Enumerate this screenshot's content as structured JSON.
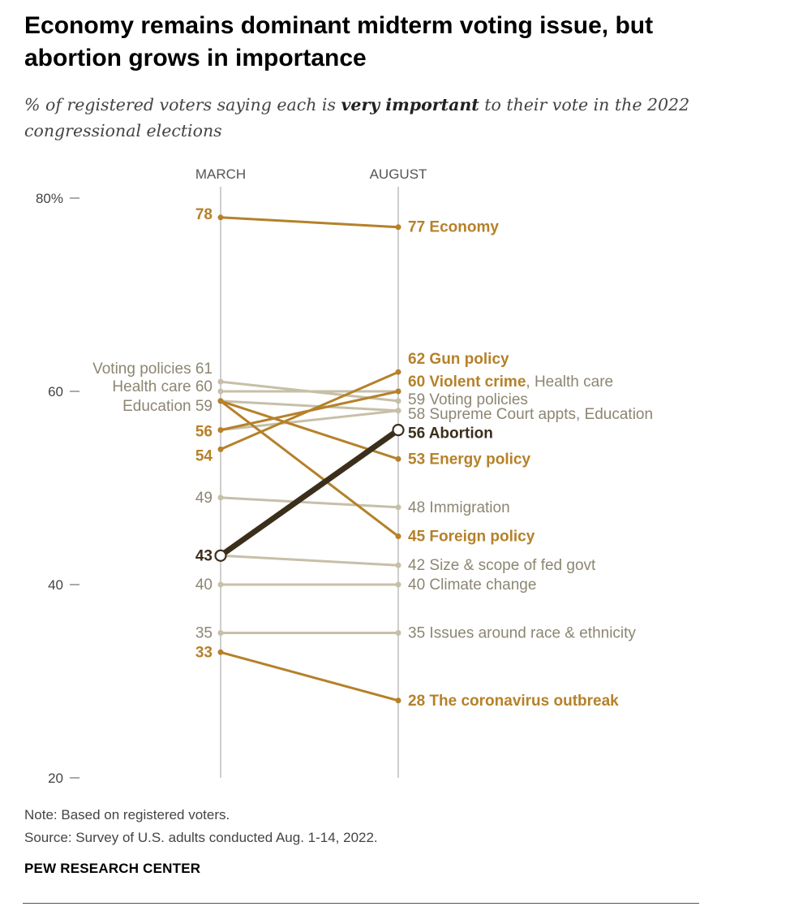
{
  "title": "Economy remains dominant midterm voting issue, but abortion grows in importance",
  "subtitle": {
    "pre": "% of registered voters saying each is ",
    "emphasis": "very important",
    "post": " to their vote in the 2022 congressional elections"
  },
  "note": "Note: Based on registered voters.",
  "source": "Source: Survey of U.S. adults conducted Aug. 1-14, 2022.",
  "brand": "PEW RESEARCH CENTER",
  "colors": {
    "gold": "#b5812a",
    "gray": "#c7bfa8",
    "gray_text": "#8c8672",
    "abortion": "#3b2f1c",
    "axis": "#bdbdbd"
  },
  "chart_data": {
    "type": "line",
    "x": [
      "MARCH",
      "AUGUST"
    ],
    "ylim": [
      20,
      80
    ],
    "yticks": [
      20,
      40,
      60,
      80
    ],
    "ytick_labels": [
      "20",
      "40",
      "60",
      "80%"
    ],
    "series": [
      {
        "name": "Economy",
        "values": [
          78,
          77
        ],
        "style": "gold",
        "bold_label": true
      },
      {
        "name": "Gun policy",
        "values": [
          54,
          62
        ],
        "style": "gold",
        "bold_label": true
      },
      {
        "name": "Violent crime",
        "values": [
          56,
          60
        ],
        "style": "gold",
        "bold_label": true
      },
      {
        "name": "Health care",
        "values": [
          60,
          60
        ],
        "style": "gray"
      },
      {
        "name": "Voting policies",
        "values": [
          61,
          59
        ],
        "style": "gray"
      },
      {
        "name": "Supreme Court appts",
        "values": [
          56,
          58
        ],
        "style": "gray"
      },
      {
        "name": "Education",
        "values": [
          59,
          58
        ],
        "style": "gray"
      },
      {
        "name": "Abortion",
        "values": [
          43,
          56
        ],
        "style": "abortion",
        "bold_label": true
      },
      {
        "name": "Energy policy",
        "values": [
          59,
          53
        ],
        "style": "gold",
        "bold_label": true
      },
      {
        "name": "Immigration",
        "values": [
          49,
          48
        ],
        "style": "gray"
      },
      {
        "name": "Foreign policy",
        "values": [
          59,
          45
        ],
        "style": "gold",
        "bold_label": true
      },
      {
        "name": "Size & scope of fed govt",
        "values": [
          43,
          42
        ],
        "style": "gray"
      },
      {
        "name": "Climate change",
        "values": [
          40,
          40
        ],
        "style": "gray"
      },
      {
        "name": "Issues around race & ethnicity",
        "values": [
          35,
          35
        ],
        "style": "gray"
      },
      {
        "name": "The coronavirus outbreak",
        "values": [
          33,
          28
        ],
        "style": "gold",
        "bold_label": true
      }
    ],
    "left_labels": [
      {
        "text": "78",
        "value": 78,
        "style": "gold",
        "bold": true
      },
      {
        "text": "Voting policies 61",
        "value": 61,
        "style": "gray"
      },
      {
        "text": "Health care 60",
        "value": 60,
        "style": "gray"
      },
      {
        "text": "Education 59",
        "value": 59,
        "style": "gray"
      },
      {
        "text": "56",
        "value": 56,
        "style": "gold",
        "bold": true
      },
      {
        "text": "54",
        "value": 54,
        "style": "gold",
        "bold": true
      },
      {
        "text": "49",
        "value": 49,
        "style": "gray"
      },
      {
        "text": "43",
        "value": 43,
        "style": "abortion",
        "bold": true
      },
      {
        "text": "40",
        "value": 40,
        "style": "gray"
      },
      {
        "text": "35",
        "value": 35,
        "style": "gray"
      },
      {
        "text": "33",
        "value": 33,
        "style": "gold",
        "bold": true
      }
    ],
    "right_labels": [
      {
        "parts": [
          {
            "text": "77 Economy",
            "style": "gold",
            "bold": true
          }
        ],
        "value": 77
      },
      {
        "parts": [
          {
            "text": "62 Gun policy",
            "style": "gold",
            "bold": true
          }
        ],
        "value": 62
      },
      {
        "parts": [
          {
            "text": "60 Violent crime",
            "style": "gold",
            "bold": true
          },
          {
            "text": ", Health care",
            "style": "gray"
          }
        ],
        "value": 60
      },
      {
        "parts": [
          {
            "text": "59 Voting policies",
            "style": "gray"
          }
        ],
        "value": 59
      },
      {
        "parts": [
          {
            "text": "58 Supreme Court appts, Education",
            "style": "gray"
          }
        ],
        "value": 58
      },
      {
        "parts": [
          {
            "text": "56 Abortion",
            "style": "abortion",
            "bold": true
          }
        ],
        "value": 56
      },
      {
        "parts": [
          {
            "text": "53 Energy policy",
            "style": "gold",
            "bold": true
          }
        ],
        "value": 53
      },
      {
        "parts": [
          {
            "text": "48 Immigration",
            "style": "gray"
          }
        ],
        "value": 48
      },
      {
        "parts": [
          {
            "text": "45 Foreign policy",
            "style": "gold",
            "bold": true
          }
        ],
        "value": 45
      },
      {
        "parts": [
          {
            "text": "42 Size & scope of fed govt",
            "style": "gray"
          }
        ],
        "value": 42
      },
      {
        "parts": [
          {
            "text": "40 Climate change",
            "style": "gray"
          }
        ],
        "value": 40
      },
      {
        "parts": [
          {
            "text": "35 Issues around race & ethnicity",
            "style": "gray"
          }
        ],
        "value": 35
      },
      {
        "parts": [
          {
            "text": "28 The coronavirus outbreak",
            "style": "gold",
            "bold": true
          }
        ],
        "value": 28
      }
    ]
  }
}
